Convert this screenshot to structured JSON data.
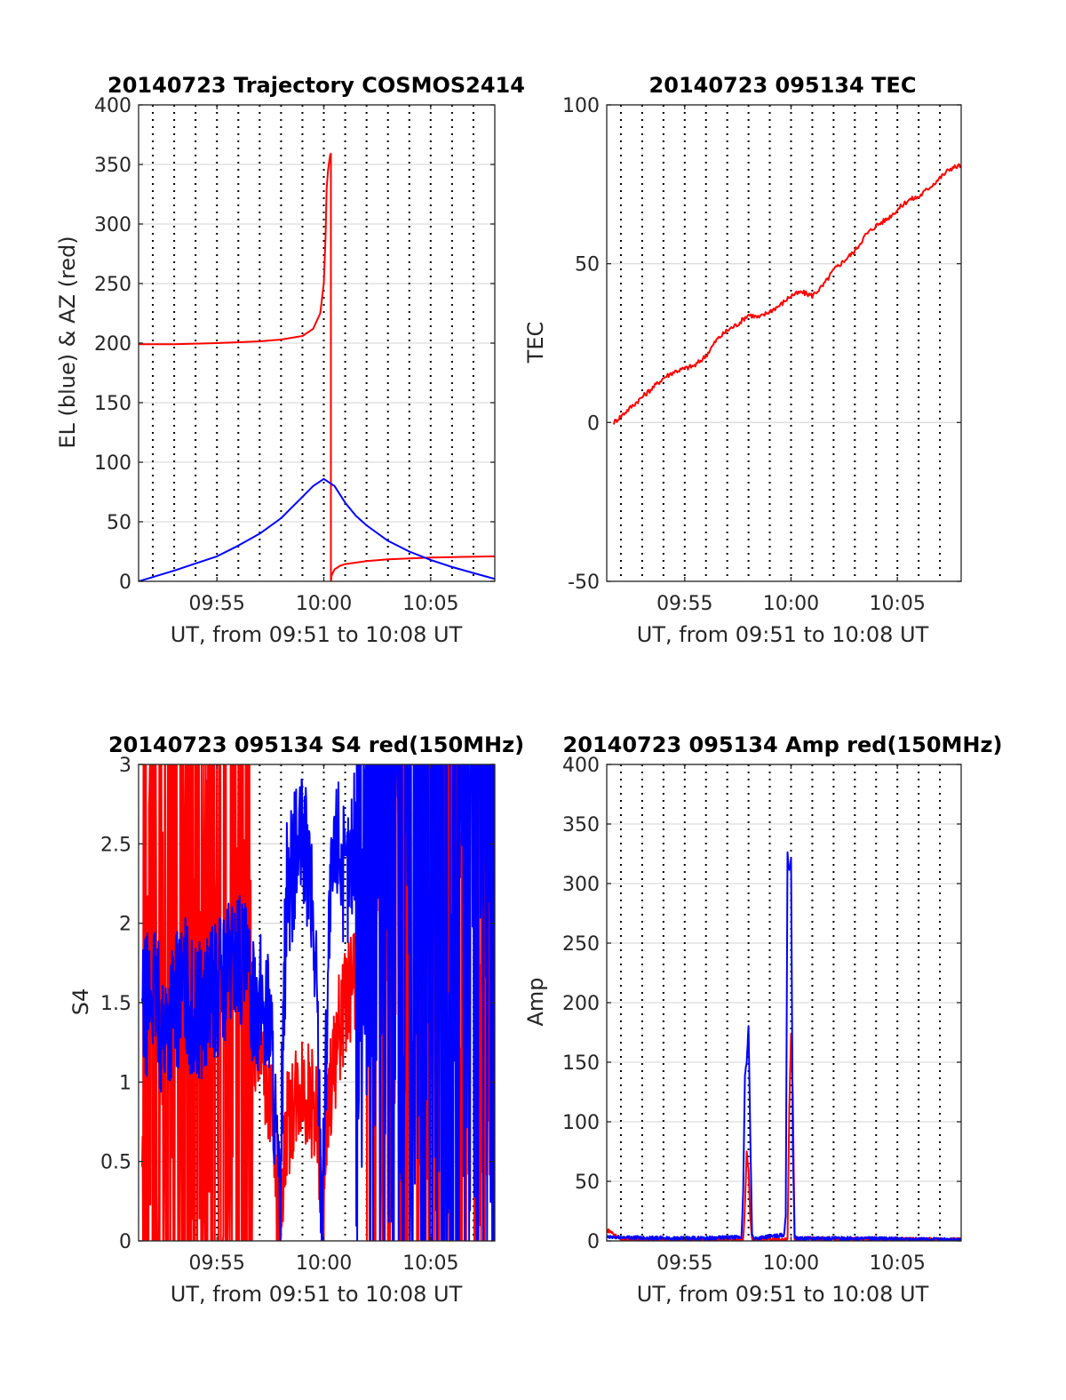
{
  "figure": {
    "background": "#ffffff",
    "colors": {
      "red": "#ff0000",
      "blue": "#0000ff"
    }
  },
  "chart_data": [
    {
      "type": "line",
      "title": "20140723 Trajectory COSMOS2414",
      "xlabel": "UT, from 09:51 to 10:08 UT",
      "ylabel": "EL (blue) & AZ (red)",
      "xlim": [
        "09:51:20",
        "10:08:00"
      ],
      "ylim": [
        0,
        400
      ],
      "xticks": [
        "09:55",
        "10:00",
        "10:05"
      ],
      "yticks": [
        0,
        50,
        100,
        150,
        200,
        250,
        300,
        350,
        400
      ],
      "grid": true,
      "x_minor_grid_minutes": 1,
      "series": [
        {
          "color": "#ff0000",
          "x": [
            "09:51:20",
            "09:53:00",
            "09:55:00",
            "09:57:00",
            "09:58:00",
            "09:59:00",
            "09:59:30",
            "09:59:50",
            "10:00:00",
            "10:00:05",
            "10:00:08",
            "10:00:12",
            "10:00:15",
            "10:00:18",
            "10:00:20",
            "10:00:20",
            "10:00:22",
            "10:00:30",
            "10:00:45",
            "10:01:00",
            "10:02:00",
            "10:03:00",
            "10:05:00",
            "10:08:00"
          ],
          "values": [
            199,
            199,
            200,
            201.5,
            203,
            206,
            212,
            225,
            250,
            290,
            330,
            345,
            352,
            358,
            359,
            0,
            5,
            10,
            13,
            14.5,
            17,
            18.5,
            20,
            21
          ]
        },
        {
          "color": "#0000ff",
          "x": [
            "09:51:20",
            "09:53:00",
            "09:55:00",
            "09:56:00",
            "09:57:00",
            "09:58:00",
            "09:58:30",
            "09:59:00",
            "09:59:30",
            "10:00:00",
            "10:00:30",
            "10:01:00",
            "10:01:30",
            "10:02:00",
            "10:03:00",
            "10:04:00",
            "10:05:00",
            "10:06:00",
            "10:07:00",
            "10:08:00"
          ],
          "values": [
            0,
            9,
            21,
            30,
            40,
            53,
            62,
            71,
            80,
            86,
            80,
            66,
            55,
            47,
            34,
            25,
            18,
            12,
            7,
            2
          ]
        }
      ]
    },
    {
      "type": "line",
      "title": "20140723 095134 TEC",
      "xlabel": "UT, from 09:51 to 10:08 UT",
      "ylabel": "TEC",
      "xlim": [
        "09:51:20",
        "10:08:00"
      ],
      "ylim": [
        -50,
        100
      ],
      "xticks": [
        "09:55",
        "10:00",
        "10:05"
      ],
      "yticks": [
        -50,
        0,
        50,
        100
      ],
      "grid": true,
      "x_minor_grid_minutes": 1,
      "series": [
        {
          "color": "#ff0000",
          "x": [
            "09:51:40",
            "09:52:00",
            "09:52:30",
            "09:53:00",
            "09:53:30",
            "09:54:00",
            "09:54:30",
            "09:55:00",
            "09:55:30",
            "09:56:00",
            "09:56:30",
            "09:57:00",
            "09:57:30",
            "09:58:00",
            "09:58:30",
            "09:59:00",
            "09:59:30",
            "10:00:00",
            "10:00:30",
            "10:01:00",
            "10:01:30",
            "10:02:00",
            "10:02:30",
            "10:03:00",
            "10:03:30",
            "10:04:00",
            "10:04:30",
            "10:05:00",
            "10:05:30",
            "10:06:00",
            "10:06:30",
            "10:07:00",
            "10:07:30",
            "10:08:00"
          ],
          "values": [
            0,
            2,
            5,
            8,
            11,
            14,
            16,
            17,
            18,
            21,
            26,
            29,
            31,
            34,
            33,
            35,
            37,
            40,
            41,
            40,
            43,
            48,
            51,
            54,
            59,
            62,
            64,
            67,
            70,
            71,
            74,
            77,
            80,
            81
          ]
        }
      ]
    },
    {
      "type": "line",
      "title": "20140723 095134 S4 red(150MHz)",
      "xlabel": "UT, from 09:51 to 10:08 UT",
      "ylabel": "S4",
      "xlim": [
        "09:51:20",
        "10:08:00"
      ],
      "ylim": [
        0,
        3
      ],
      "xticks": [
        "09:55",
        "10:00",
        "10:05"
      ],
      "yticks": [
        0,
        0.5,
        1,
        1.5,
        2,
        2.5,
        3
      ],
      "grid": true,
      "x_minor_grid_minutes": 1,
      "series": [
        {
          "color": "#ff0000",
          "x": [
            "09:51:30",
            "09:52:00",
            "09:52:30",
            "09:53:00",
            "09:53:30",
            "09:54:00",
            "09:54:30",
            "09:55:00",
            "09:55:30",
            "09:56:00",
            "09:56:30",
            "09:57:00",
            "09:57:30",
            "09:57:55",
            "09:58:15",
            "09:58:40",
            "09:59:00",
            "09:59:20",
            "09:59:40",
            "09:59:55",
            "10:00:15",
            "10:00:40",
            "10:01:00",
            "10:01:30",
            "10:02:00",
            "10:02:30",
            "10:03:00",
            "10:04:00",
            "10:05:00",
            "10:06:00",
            "10:07:00",
            "10:08:00"
          ],
          "values": [
            1.3,
            1.2,
            1.4,
            1.5,
            1.4,
            1.3,
            1.35,
            1.5,
            1.4,
            1.3,
            1.4,
            1.2,
            0.9,
            0.1,
            0.7,
            0.9,
            1.0,
            0.9,
            0.8,
            0.1,
            0.9,
            1.3,
            1.5,
            1.7,
            1.9,
            2.1,
            2.6,
            3.0,
            3.0,
            3.0,
            3.0,
            3.0
          ],
          "note_envelope": [
            0,
            3
          ]
        },
        {
          "color": "#0000ff",
          "x": [
            "09:51:30",
            "09:52:00",
            "09:52:30",
            "09:53:00",
            "09:53:30",
            "09:54:00",
            "09:54:30",
            "09:55:00",
            "09:55:30",
            "09:56:00",
            "09:56:30",
            "09:57:00",
            "09:57:30",
            "09:57:55",
            "09:58:15",
            "09:58:40",
            "09:59:00",
            "09:59:20",
            "09:59:40",
            "09:59:55",
            "10:00:15",
            "10:00:40",
            "10:01:00",
            "10:01:30",
            "10:02:00",
            "10:03:00",
            "10:04:00",
            "10:05:00",
            "10:06:00",
            "10:07:00",
            "10:08:00"
          ],
          "values": [
            1.4,
            1.6,
            1.3,
            1.5,
            1.6,
            1.4,
            1.5,
            1.6,
            1.7,
            1.8,
            1.6,
            1.5,
            1.4,
            0.15,
            2.2,
            2.4,
            2.5,
            2.3,
            1.6,
            0.12,
            2.0,
            2.6,
            2.2,
            2.6,
            2.8,
            3.0,
            3.0,
            3.0,
            3.0,
            3.0,
            3.0
          ]
        }
      ]
    },
    {
      "type": "line",
      "title": "20140723 095134 Amp red(150MHz)",
      "xlabel": "UT, from 09:51 to 10:08 UT",
      "ylabel": "Amp",
      "xlim": [
        "09:51:20",
        "10:08:00"
      ],
      "ylim": [
        0,
        400
      ],
      "xticks": [
        "09:55",
        "10:00",
        "10:05"
      ],
      "yticks": [
        0,
        50,
        100,
        150,
        200,
        250,
        300,
        350,
        400
      ],
      "grid": true,
      "x_minor_grid_minutes": 1,
      "series": [
        {
          "color": "#ff0000",
          "x": [
            "09:51:20",
            "09:51:30",
            "09:52:00",
            "09:57:45",
            "09:57:50",
            "09:57:55",
            "09:58:00",
            "09:58:05",
            "09:58:10",
            "09:59:50",
            "09:59:55",
            "10:00:00",
            "10:00:05",
            "10:00:10",
            "10:08:00"
          ],
          "values": [
            9,
            8,
            1,
            1,
            30,
            75,
            60,
            20,
            1,
            1,
            110,
            175,
            120,
            2,
            1
          ]
        },
        {
          "color": "#0000ff",
          "x": [
            "09:51:20",
            "09:52:00",
            "09:55:00",
            "09:57:40",
            "09:57:45",
            "09:57:50",
            "09:57:55",
            "09:58:00",
            "09:58:05",
            "09:58:10",
            "09:58:15",
            "09:59:40",
            "09:59:45",
            "09:59:50",
            "09:59:55",
            "10:00:00",
            "10:00:05",
            "10:00:10",
            "10:00:15",
            "10:03:00",
            "10:08:00"
          ],
          "values": [
            3,
            3,
            2,
            3,
            40,
            140,
            150,
            180,
            90,
            5,
            2,
            5,
            20,
            325,
            310,
            320,
            80,
            4,
            2,
            2,
            1
          ]
        }
      ]
    }
  ]
}
